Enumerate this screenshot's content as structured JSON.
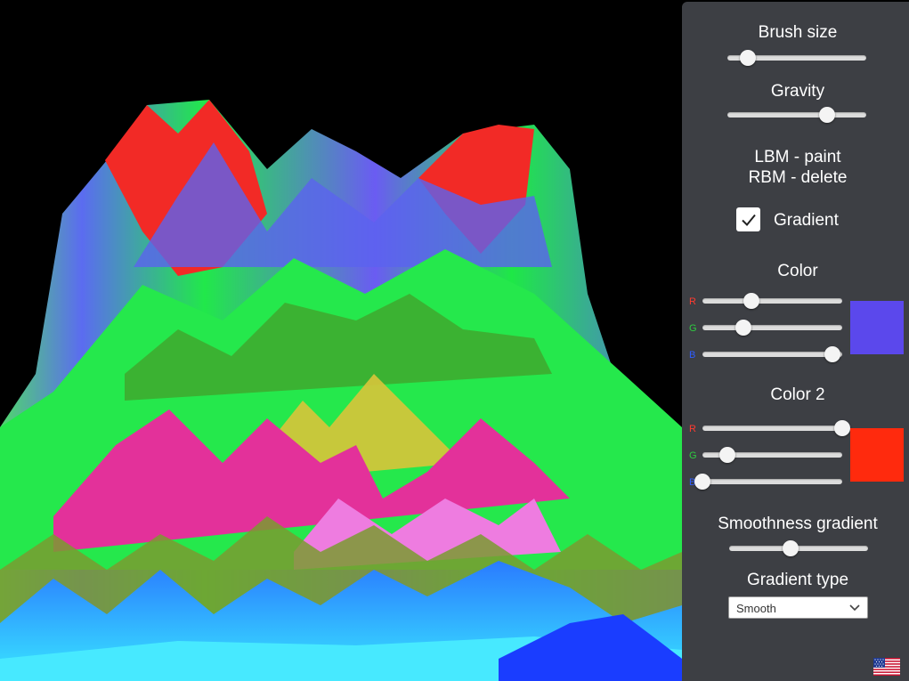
{
  "panel": {
    "brush_size": {
      "label": "Brush size",
      "value": 0.15
    },
    "gravity": {
      "label": "Gravity",
      "value": 0.72
    },
    "help": {
      "line1": "LBM - paint",
      "line2": "RBM - delete"
    },
    "gradient_toggle": {
      "label": "Gradient",
      "checked": true
    },
    "color1": {
      "label": "Color",
      "r": {
        "label": "R",
        "value": 0.35,
        "color": "#ff3b30"
      },
      "g": {
        "label": "G",
        "value": 0.29,
        "color": "#2ecc40"
      },
      "b": {
        "label": "B",
        "value": 0.93,
        "color": "#2f5dff"
      },
      "swatch": "#5b48ec"
    },
    "color2": {
      "label": "Color 2",
      "r": {
        "label": "R",
        "value": 1.0,
        "color": "#ff3b30"
      },
      "g": {
        "label": "G",
        "value": 0.18,
        "color": "#2ecc40"
      },
      "b": {
        "label": "B",
        "value": 0.0,
        "color": "#2f5dff"
      },
      "swatch": "#ff2a0d"
    },
    "smoothness": {
      "label": "Smoothness gradient",
      "value": 0.44
    },
    "gradient_type": {
      "label": "Gradient type",
      "selected": "Smooth"
    },
    "language_icon": "us-flag-icon"
  }
}
